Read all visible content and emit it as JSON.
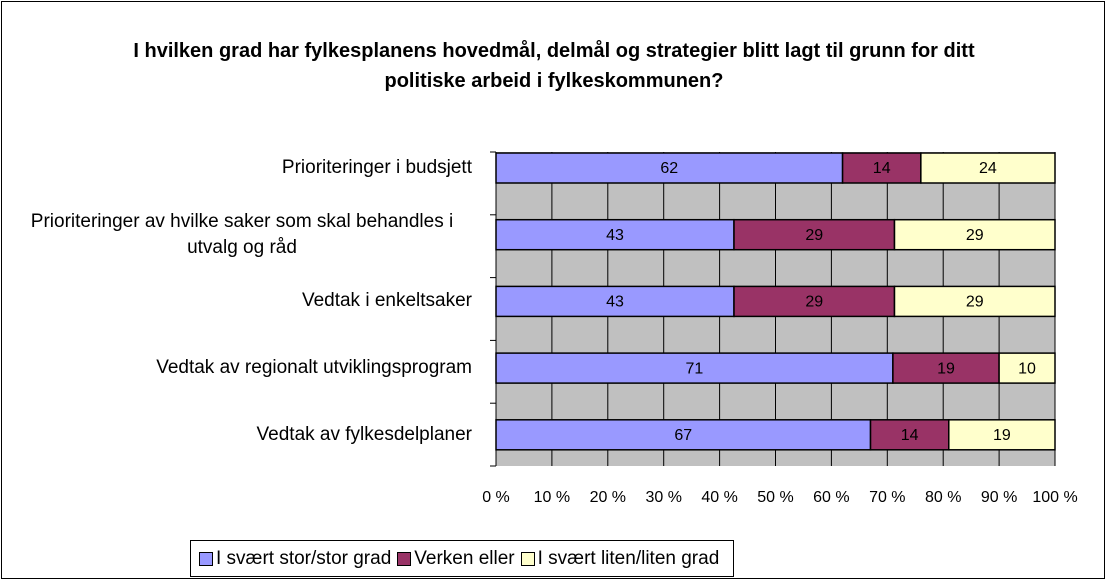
{
  "chart_data": {
    "type": "bar",
    "stacked": "percent",
    "orientation": "horizontal",
    "title": "I hvilken grad har fylkesplanens hovedmål, delmål og strategier blitt lagt til grunn for ditt politiske arbeid i fylkeskommunen?",
    "categories": [
      "Prioriteringer i budsjett",
      "Prioriteringer av hvilke saker som skal behandles i utvalg og råd",
      "Vedtak i enkeltsaker",
      "Vedtak av regionalt utviklingsprogram",
      "Vedtak av fylkesdelplaner"
    ],
    "series": [
      {
        "name": "I svært stor/stor grad",
        "color": "#9999ff",
        "values": [
          62,
          43,
          43,
          71,
          67
        ]
      },
      {
        "name": "Verken eller",
        "color": "#993366",
        "values": [
          14,
          29,
          29,
          19,
          14
        ]
      },
      {
        "name": "I svært liten/liten grad",
        "color": "#ffffcc",
        "values": [
          24,
          29,
          29,
          10,
          19
        ]
      }
    ],
    "xlim": [
      0,
      100
    ],
    "xticks": [
      {
        "value": 0,
        "label": "0 %"
      },
      {
        "value": 10,
        "label": "10 %"
      },
      {
        "value": 20,
        "label": "20 %"
      },
      {
        "value": 30,
        "label": "30 %"
      },
      {
        "value": 40,
        "label": "40 %"
      },
      {
        "value": 50,
        "label": "50 %"
      },
      {
        "value": 60,
        "label": "60 %"
      },
      {
        "value": 70,
        "label": "70 %"
      },
      {
        "value": 80,
        "label": "80 %"
      },
      {
        "value": 90,
        "label": "90 %"
      },
      {
        "value": 100,
        "label": "100 %"
      }
    ],
    "grid": true,
    "legend": "bottom"
  }
}
